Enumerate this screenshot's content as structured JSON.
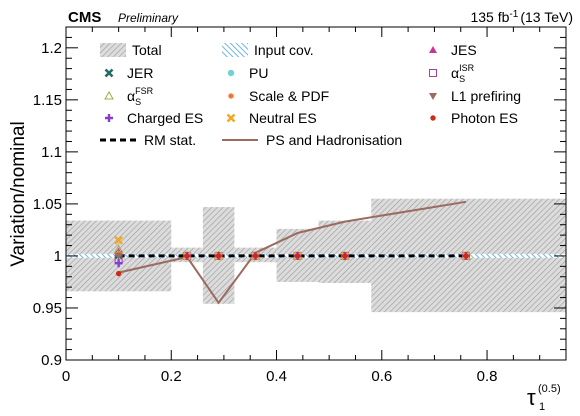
{
  "header": {
    "experiment": "CMS",
    "status": "Preliminary",
    "lumi_value": "135 fb",
    "lumi_exp": "-1",
    "lumi_energy": "(13 TeV)"
  },
  "chart_data": {
    "type": "scatter",
    "xlabel_base": "τ",
    "xlabel_sub": "1",
    "xlabel_sup": "(0.5)",
    "ylabel": "Variation/nominal",
    "xlim": [
      0,
      0.95
    ],
    "ylim": [
      0.9,
      1.22
    ],
    "xticks": [
      0,
      0.2,
      0.4,
      0.6,
      0.8
    ],
    "xtick_labels": [
      "0",
      "0.2",
      "0.4",
      "0.6",
      "0.8"
    ],
    "yticks": [
      0.9,
      0.95,
      1.0,
      1.05,
      1.1,
      1.15,
      1.2
    ],
    "ytick_labels": [
      "0.9",
      "0.95",
      "1",
      "1.05",
      "1.1",
      "1.15",
      "1.2"
    ],
    "legend_position": "top, three columns",
    "bins": [
      {
        "lo": 0.0,
        "hi": 0.2,
        "total_lo": 0.966,
        "total_hi": 1.034
      },
      {
        "lo": 0.2,
        "hi": 0.26,
        "total_lo": 0.994,
        "total_hi": 1.008
      },
      {
        "lo": 0.26,
        "hi": 0.32,
        "total_lo": 0.954,
        "total_hi": 1.047
      },
      {
        "lo": 0.32,
        "hi": 0.4,
        "total_lo": 0.994,
        "total_hi": 1.008
      },
      {
        "lo": 0.4,
        "hi": 0.48,
        "total_lo": 0.975,
        "total_hi": 1.026
      },
      {
        "lo": 0.48,
        "hi": 0.58,
        "total_lo": 0.974,
        "total_hi": 1.034
      },
      {
        "lo": 0.58,
        "hi": 0.95,
        "total_lo": 0.946,
        "total_hi": 1.055
      }
    ],
    "bin_centers": [
      0.1,
      0.23,
      0.29,
      0.36,
      0.44,
      0.53,
      0.76
    ],
    "series": [
      {
        "name": "Total",
        "kind": "band",
        "color": "#bdbdbd"
      },
      {
        "name": "Input cov.",
        "kind": "hatch",
        "color": "#4aa3df",
        "values": [
          1.0,
          1.0,
          1.0,
          1.0,
          1.0,
          1.0,
          1.0
        ]
      },
      {
        "name": "JES",
        "kind": "marker",
        "marker": "triangle-up",
        "color": "#cc3399",
        "values": [
          1.004,
          1.0,
          1.0,
          1.0,
          1.0,
          1.0,
          1.0
        ]
      },
      {
        "name": "JER",
        "kind": "marker",
        "marker": "x",
        "color": "#1f6b63",
        "values": [
          1.001,
          1.0,
          1.0,
          1.0,
          1.0,
          1.0,
          1.0
        ]
      },
      {
        "name": "PU",
        "kind": "marker",
        "marker": "circle",
        "color": "#6fd3d0",
        "values": [
          1.002,
          1.0,
          1.0,
          1.0,
          1.0,
          1.0,
          1.0
        ]
      },
      {
        "name_base": "α",
        "name_sub": "S",
        "name_sup": "ISR",
        "kind": "marker",
        "marker": "square-open",
        "color": "#a040a0",
        "values": [
          0.997,
          1.0,
          1.0,
          1.0,
          1.0,
          1.0,
          1.0
        ]
      },
      {
        "name_base": "α",
        "name_sub": "S",
        "name_sup": "FSR",
        "kind": "marker",
        "marker": "triangle-open",
        "color": "#a7a83c",
        "values": [
          1.006,
          1.0,
          1.0,
          1.0,
          1.0,
          1.0,
          1.0
        ]
      },
      {
        "name": "Scale & PDF",
        "kind": "marker",
        "marker": "star",
        "color": "#f07020",
        "values": [
          1.002,
          1.0,
          1.0,
          1.0,
          1.0,
          1.0,
          1.0
        ]
      },
      {
        "name": "L1 prefiring",
        "kind": "marker",
        "marker": "triangle-down",
        "color": "#9b6b60",
        "values": [
          1.0,
          1.0,
          1.0,
          1.0,
          1.0,
          1.0,
          1.0
        ]
      },
      {
        "name": "Charged ES",
        "kind": "marker",
        "marker": "plus",
        "color": "#8a3bd1",
        "values": [
          0.993,
          1.0,
          1.0,
          1.0,
          1.0,
          1.0,
          1.0
        ]
      },
      {
        "name": "Neutral ES",
        "kind": "marker",
        "marker": "cross",
        "color": "#f5a623",
        "values": [
          1.015,
          1.0,
          1.0,
          1.0,
          1.0,
          1.0,
          1.0
        ]
      },
      {
        "name": "Photon ES",
        "kind": "marker",
        "marker": "circle-small",
        "color": "#cc2a1a",
        "values": [
          0.983,
          1.0,
          1.0,
          1.0,
          1.0,
          1.0,
          1.0
        ]
      },
      {
        "name": "RM stat.",
        "kind": "line",
        "dash": true,
        "color": "#000000",
        "values": [
          1.0,
          1.0,
          1.0,
          1.0,
          1.0,
          1.0,
          1.0
        ]
      },
      {
        "name": "PS and Hadronisation",
        "kind": "line",
        "dash": false,
        "color": "#9b6b60",
        "x": [
          0.1,
          0.23,
          0.29,
          0.36,
          0.44,
          0.53,
          0.76
        ],
        "values": [
          0.984,
          0.999,
          0.955,
          1.003,
          1.022,
          1.033,
          1.052
        ]
      }
    ]
  }
}
